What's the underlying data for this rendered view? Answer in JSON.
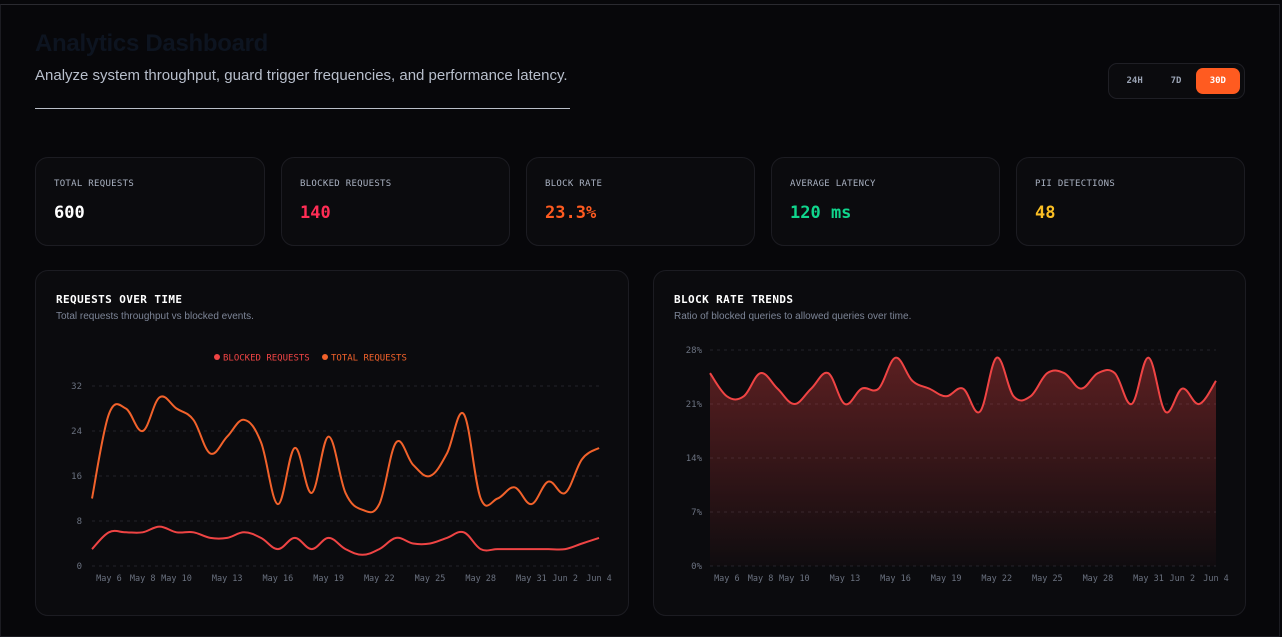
{
  "header": {
    "title": "Analytics Dashboard",
    "subtitle": "Analyze system throughput, guard trigger frequencies, and performance latency."
  },
  "range": {
    "options": [
      "24H",
      "7D",
      "30D"
    ],
    "selected": "30D"
  },
  "metrics": [
    {
      "label": "TOTAL REQUESTS",
      "value": "600",
      "color": "#ffffff"
    },
    {
      "label": "BLOCKED REQUESTS",
      "value": "140",
      "color": "#ff2d55"
    },
    {
      "label": "BLOCK RATE",
      "value": "23.3%",
      "color": "#ff5b20"
    },
    {
      "label": "AVERAGE LATENCY",
      "value": "120 ms",
      "color": "#10d58c"
    },
    {
      "label": "PII DETECTIONS",
      "value": "48",
      "color": "#fbbf24"
    }
  ],
  "colors": {
    "accent": "#ff5b20",
    "blocked": "#ef4444",
    "total": "#f2622b",
    "trend": "#ef4444"
  },
  "requests_panel": {
    "title": "REQUESTS OVER TIME",
    "subtitle": "Total requests throughput vs blocked events."
  },
  "trends_panel": {
    "title": "BLOCK RATE TRENDS",
    "subtitle": "Ratio of blocked queries to allowed queries over time."
  },
  "chart_data": [
    {
      "type": "line",
      "title": "REQUESTS OVER TIME",
      "legend": [
        "BLOCKED REQUESTS",
        "TOTAL REQUESTS"
      ],
      "legend_position": "top-center",
      "ylim": [
        0,
        32
      ],
      "yticks": [
        0,
        8,
        16,
        24,
        32
      ],
      "x_tick_labels": [
        "May 6",
        "May 8",
        "May 10",
        "May 13",
        "May 16",
        "May 19",
        "May 22",
        "May 25",
        "May 28",
        "May 31",
        "Jun 2",
        "Jun 4"
      ],
      "x_tick_index": [
        1,
        3,
        5,
        8,
        11,
        14,
        17,
        20,
        23,
        26,
        28,
        30
      ],
      "grid": true,
      "series": [
        {
          "name": "TOTAL REQUESTS",
          "values": [
            12,
            27,
            28,
            24,
            30,
            28,
            26,
            20,
            23,
            26,
            22,
            11,
            21,
            13,
            23,
            13,
            10,
            11,
            22,
            18,
            16,
            20,
            27,
            12,
            12,
            14,
            11,
            15,
            13,
            19,
            21
          ]
        },
        {
          "name": "BLOCKED REQUESTS",
          "values": [
            3,
            6,
            6,
            6,
            7,
            6,
            6,
            5,
            5,
            6,
            5,
            3,
            5,
            3,
            5,
            3,
            2,
            3,
            5,
            4,
            4,
            5,
            6,
            3,
            3,
            3,
            3,
            3,
            3,
            4,
            5
          ]
        }
      ]
    },
    {
      "type": "area",
      "title": "BLOCK RATE TRENDS",
      "ylim": [
        0,
        28
      ],
      "yticks": [
        "0%",
        "7%",
        "14%",
        "21%",
        "28%"
      ],
      "ytick_values": [
        0,
        7,
        14,
        21,
        28
      ],
      "x_tick_labels": [
        "May 6",
        "May 8",
        "May 10",
        "May 13",
        "May 16",
        "May 19",
        "May 22",
        "May 25",
        "May 28",
        "May 31",
        "Jun 2",
        "Jun 4"
      ],
      "x_tick_index": [
        1,
        3,
        5,
        8,
        11,
        14,
        17,
        20,
        23,
        26,
        28,
        30
      ],
      "grid": true,
      "series": [
        {
          "values": [
            25,
            22,
            22,
            25,
            23,
            21,
            23,
            25,
            21,
            23,
            23,
            27,
            24,
            23,
            22,
            23,
            20,
            27,
            22,
            22,
            25,
            25,
            23,
            25,
            25,
            21,
            27,
            20,
            23,
            21,
            24
          ]
        }
      ]
    }
  ]
}
